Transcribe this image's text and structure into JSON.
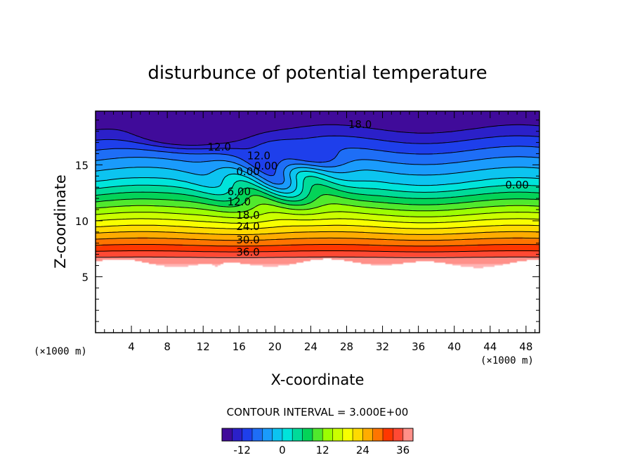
{
  "chart_data": {
    "type": "heatmap",
    "title": "disturbunce of potential temperature",
    "xlabel": "X-coordinate",
    "ylabel": "Z-coordinate",
    "x_unit_label": "(×1000 m)",
    "y_unit_label": "(×1000 m)",
    "xlim": [
      0,
      49.5
    ],
    "ylim": [
      0,
      19.8
    ],
    "x_ticks": [
      "4",
      "8",
      "12",
      "16",
      "20",
      "24",
      "28",
      "32",
      "36",
      "40",
      "44",
      "48"
    ],
    "y_ticks": [
      "5",
      "10",
      "15"
    ],
    "contour_interval_text": "CONTOUR INTERVAL = 3.000E+00",
    "contour_interval": 3.0,
    "colorbar": {
      "min": -18,
      "max": 39,
      "tick_labels": [
        "-12",
        "0",
        "12",
        "24",
        "36"
      ],
      "colors": [
        "#4b0082",
        "#1e2de6",
        "#1e90ff",
        "#00e6e6",
        "#00d25a",
        "#a0ff00",
        "#ffff00",
        "#ffa000",
        "#ff1e00",
        "#ffb4b4"
      ]
    },
    "contour_labels": [
      {
        "text": "18.0",
        "x": 29.5,
        "z": 18.6
      },
      {
        "text": "12.0",
        "x": 13.8,
        "z": 16.6
      },
      {
        "text": "12.0",
        "x": 18.2,
        "z": 15.8
      },
      {
        "text": "0.00",
        "x": 19.0,
        "z": 14.9
      },
      {
        "text": "0.00",
        "x": 17.0,
        "z": 14.4
      },
      {
        "text": "0.00",
        "x": 47.0,
        "z": 13.2
      },
      {
        "text": "6.00",
        "x": 16.0,
        "z": 12.6
      },
      {
        "text": "12.0",
        "x": 16.0,
        "z": 11.7
      },
      {
        "text": "18.0",
        "x": 17.0,
        "z": 10.5
      },
      {
        "text": "24.0",
        "x": 17.0,
        "z": 9.5
      },
      {
        "text": "30.0",
        "x": 17.0,
        "z": 8.3
      },
      {
        "text": "36.0",
        "x": 17.0,
        "z": 7.2
      }
    ],
    "fields": {
      "surface_height_km": 6.2,
      "tropopause_height_km": 13.5,
      "stratosphere_anomaly_min": -18,
      "surface_anomaly_max": 39,
      "mountain_x_km": 13.5
    }
  }
}
